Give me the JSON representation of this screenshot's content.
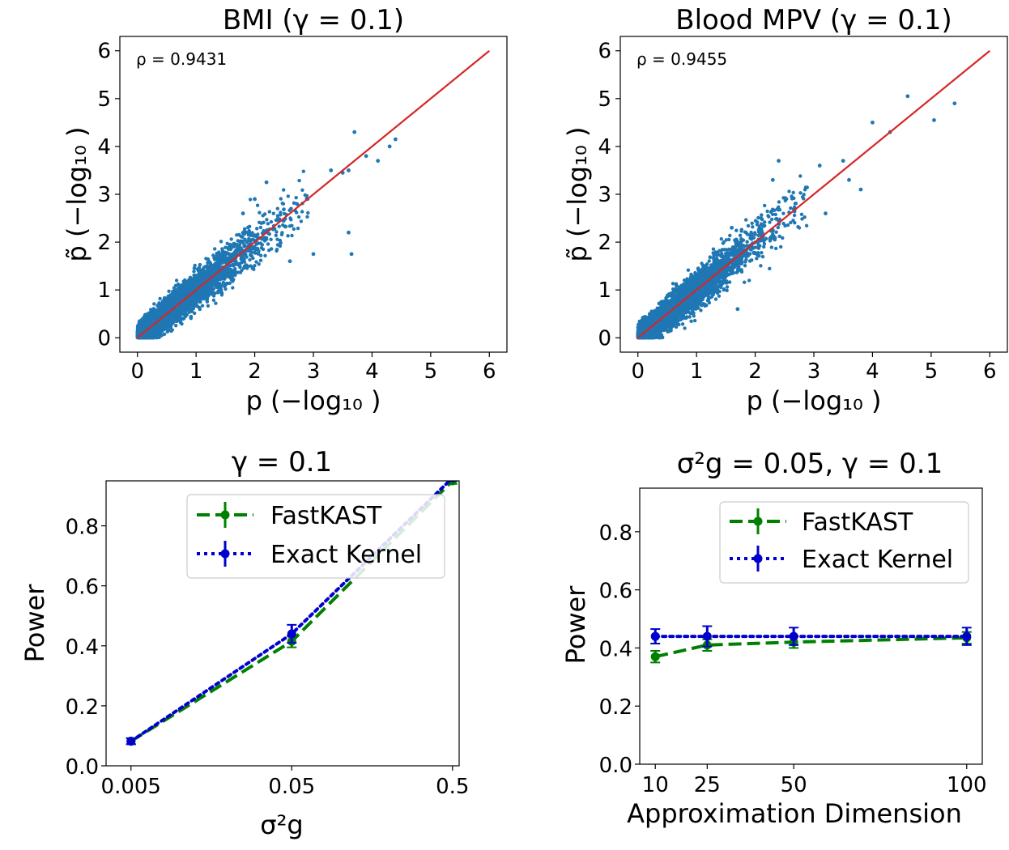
{
  "chart_data": [
    {
      "type": "scatter",
      "title": "BMI (γ = 0.1)",
      "xlabel": "p (−log₁₀ )",
      "ylabel": "p̃ (−log₁₀ )",
      "annotation": "ρ =  0.9431",
      "xlim": [
        -0.3,
        6.3
      ],
      "ylim": [
        -0.3,
        6.3
      ],
      "xticks": [
        "0",
        "1",
        "2",
        "3",
        "4",
        "5",
        "6"
      ],
      "yticks": [
        "0",
        "1",
        "2",
        "3",
        "4",
        "5",
        "6"
      ],
      "reference_line": {
        "x": [
          0,
          6
        ],
        "y": [
          0,
          6
        ],
        "color": "#d62728"
      },
      "point_color": "#1f77b4",
      "seed": 7,
      "spread": 0.28,
      "points": [
        [
          3.6,
          3.5
        ],
        [
          3.7,
          4.3
        ],
        [
          3.9,
          3.8
        ],
        [
          4.1,
          3.7
        ],
        [
          4.4,
          4.15
        ],
        [
          4.3,
          4.0
        ],
        [
          3.6,
          2.2
        ],
        [
          3.65,
          1.75
        ],
        [
          3.0,
          1.75
        ],
        [
          2.2,
          3.25
        ],
        [
          2.6,
          1.6
        ],
        [
          3.3,
          3.5
        ],
        [
          3.5,
          3.45
        ],
        [
          2.9,
          2.9
        ],
        [
          2.0,
          2.9
        ],
        [
          1.8,
          2.6
        ]
      ]
    },
    {
      "type": "scatter",
      "title": "Blood MPV (γ = 0.1)",
      "xlabel": "p (−log₁₀ )",
      "ylabel": "p̃ (−log₁₀ )",
      "annotation": "ρ =  0.9455",
      "xlim": [
        -0.3,
        6.3
      ],
      "ylim": [
        -0.3,
        6.3
      ],
      "xticks": [
        "0",
        "1",
        "2",
        "3",
        "4",
        "5",
        "6"
      ],
      "yticks": [
        "0",
        "1",
        "2",
        "3",
        "4",
        "5",
        "6"
      ],
      "reference_line": {
        "x": [
          0,
          6
        ],
        "y": [
          0,
          6
        ],
        "color": "#d62728"
      },
      "point_color": "#1f77b4",
      "seed": 23,
      "spread": 0.27,
      "points": [
        [
          4.6,
          5.05
        ],
        [
          5.4,
          4.9
        ],
        [
          5.05,
          4.55
        ],
        [
          4.3,
          4.3
        ],
        [
          4.0,
          4.5
        ],
        [
          3.5,
          3.7
        ],
        [
          3.6,
          3.3
        ],
        [
          3.8,
          3.1
        ],
        [
          3.1,
          3.6
        ],
        [
          2.4,
          3.7
        ],
        [
          2.3,
          3.3
        ],
        [
          1.7,
          0.6
        ],
        [
          2.1,
          2.5
        ],
        [
          1.6,
          2.3
        ],
        [
          3.2,
          2.6
        ]
      ]
    },
    {
      "type": "line",
      "title": "γ = 0.1",
      "xlabel": "σ²g",
      "ylabel": "Power",
      "xscale": "log",
      "x": [
        0.005,
        0.05,
        0.5
      ],
      "xtick_labels": [
        "0.005",
        "0.05",
        "0.5"
      ],
      "xlim": [
        0.0035,
        0.55
      ],
      "ylim": [
        0.0,
        0.95
      ],
      "yticks": [
        "0.0",
        "0.2",
        "0.4",
        "0.6",
        "0.8"
      ],
      "series": [
        {
          "name": "FastKAST",
          "values": [
            0.082,
            0.415,
            0.95
          ],
          "err": [
            0.01,
            0.02,
            0.01
          ],
          "color": "#008000",
          "style": "dashed"
        },
        {
          "name": "Exact Kernel",
          "values": [
            0.082,
            0.44,
            0.96
          ],
          "err": [
            0.01,
            0.03,
            0.01
          ],
          "color": "#0000cc",
          "style": "dotted"
        }
      ],
      "legend": "upper-right"
    },
    {
      "type": "line",
      "title": "σ²g = 0.05, γ = 0.1",
      "xlabel": "Approximation Dimension",
      "ylabel": "Power",
      "x": [
        10,
        25,
        50,
        100
      ],
      "xtick_labels": [
        "10",
        "25",
        "50",
        "100"
      ],
      "xlim": [
        5.5,
        104.5
      ],
      "ylim": [
        0.0,
        0.95
      ],
      "yticks": [
        "0.0",
        "0.2",
        "0.4",
        "0.6",
        "0.8"
      ],
      "series": [
        {
          "name": "FastKAST",
          "values": [
            0.37,
            0.41,
            0.42,
            0.435
          ],
          "err": [
            0.02,
            0.02,
            0.02,
            0.02
          ],
          "color": "#008000",
          "style": "dashed"
        },
        {
          "name": "Exact Kernel",
          "values": [
            0.44,
            0.44,
            0.44,
            0.44
          ],
          "err": [
            0.025,
            0.035,
            0.03,
            0.03
          ],
          "color": "#0000cc",
          "style": "dotted"
        }
      ],
      "legend": "upper-right"
    }
  ]
}
